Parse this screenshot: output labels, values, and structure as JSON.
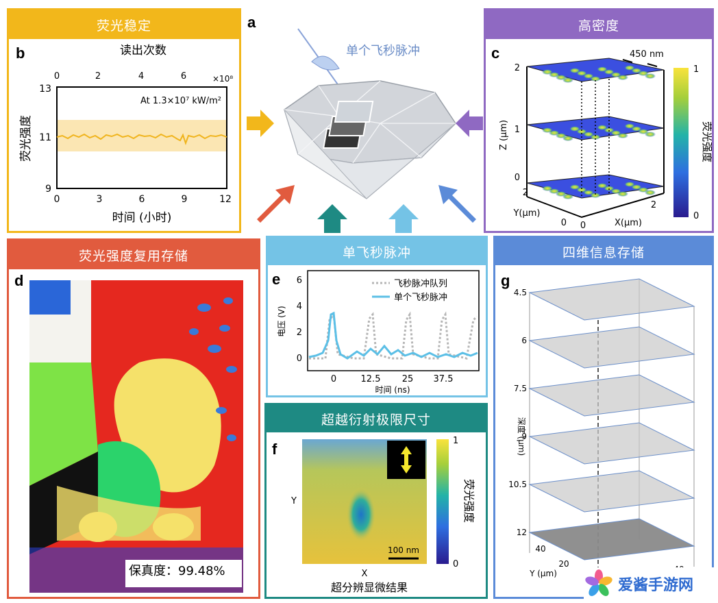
{
  "panel_letters": {
    "a": "a",
    "b": "b",
    "c": "c",
    "d": "d",
    "e": "e",
    "f": "f",
    "g": "g"
  },
  "colors": {
    "stable": "#f2b71b",
    "density": "#8f69c2",
    "multiplex": "#e15b3e",
    "single_pulse": "#74c3e6",
    "super_res": "#1e8a83",
    "four_d": "#5b8bd8"
  },
  "panels": {
    "b": {
      "header": "荧光稳定",
      "top_axis_label": "读出次数",
      "top_ticks": [
        "0",
        "2",
        "4",
        "6"
      ],
      "top_exponent": "×10⁸",
      "y_label": "荧光强度",
      "y_ticks": [
        "13",
        "11",
        "9"
      ],
      "x_ticks": [
        "0",
        "3",
        "6",
        "9",
        "12"
      ],
      "x_label": "时间 (小时)",
      "annotation": "At 1.3×10⁷ kW/m²"
    },
    "a": {
      "pulse_label": "单个飞秒脉冲"
    },
    "c": {
      "header": "高密度",
      "spacing": "450 nm",
      "z_label": "Z (μm)",
      "z_ticks": [
        "2",
        "1",
        "0"
      ],
      "y_label": "Y(μm)",
      "y_ticks": [
        "2",
        "0"
      ],
      "x_label": "X(μm)",
      "x_ticks": [
        "0",
        "2"
      ],
      "colorbar_label": "荧光强度",
      "colorbar_max": "1",
      "colorbar_min": "0"
    },
    "d": {
      "header": "荧光强度复用存储",
      "fidelity": "保真度：99.48%"
    },
    "e": {
      "header": "单飞秒脉冲",
      "y_label": "电压 (V)",
      "y_ticks": [
        "6",
        "4",
        "2",
        "0"
      ],
      "x_ticks": [
        "0",
        "12.5",
        "25",
        "37.5"
      ],
      "x_label": "时间 (ns)",
      "legend_train": "飞秒脉冲队列",
      "legend_single": "单个飞秒脉冲"
    },
    "f": {
      "header": "超越衍射极限尺寸",
      "y_label": "Y",
      "x_label": "X",
      "scale_bar": "100 nm",
      "colorbar_max": "1",
      "colorbar_min": "0",
      "colorbar_label": "荧光强度",
      "caption": "超分辨显微结果"
    },
    "g": {
      "header": "四维信息存储",
      "depth_label": "深度 (μm)",
      "depth_ticks": [
        "4.5",
        "6",
        "7.5",
        "9",
        "10.5",
        "12"
      ],
      "y_label": "Y (μm)",
      "y_ticks": [
        "40",
        "20"
      ],
      "x_ticks": [
        "20",
        "40"
      ]
    }
  },
  "watermark": {
    "text": "爱酱手游网"
  }
}
